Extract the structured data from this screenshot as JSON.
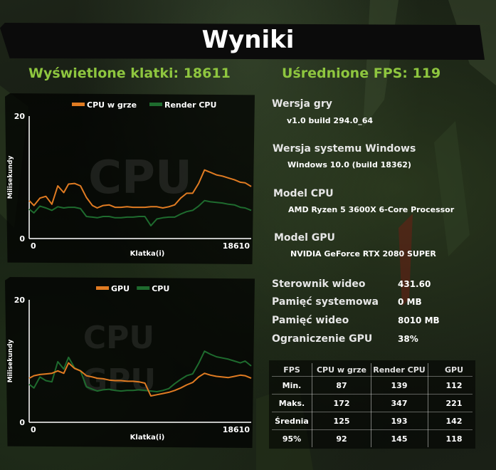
{
  "title": "Wyniki",
  "frames_rendered": "Wyświetlone klatki: 18611",
  "average_fps": "Uśrednione FPS: 119",
  "colors": {
    "accent": "#8ec63f",
    "cpu_game": "#e07b22",
    "render_cpu": "#1e6b2e",
    "gpu": "#e07b22",
    "cpu": "#1e6b2e"
  },
  "chart_data": [
    {
      "type": "line",
      "watermark": "CPU",
      "xlabel": "Klatka(i)",
      "ylabel": "Milisekundy",
      "x_ticks": [
        "0",
        "18610"
      ],
      "y_ticks": [
        "20",
        "0"
      ],
      "xlim": [
        0,
        18610
      ],
      "ylim": [
        0,
        20
      ],
      "legend": "top",
      "series": [
        {
          "name": "CPU w grze",
          "color": "#e07b22",
          "x": [
            0,
            400,
            900,
            1400,
            1900,
            2400,
            2900,
            3300,
            3800,
            4300,
            4800,
            5300,
            5700,
            6200,
            6700,
            7200,
            7700,
            8200,
            8700,
            9200,
            9700,
            10200,
            10700,
            11200,
            11700,
            12200,
            12700,
            13200,
            13700,
            14200,
            14700,
            15200,
            15700,
            16200,
            16700,
            17200,
            17700,
            18100,
            18610
          ],
          "values": [
            6.2,
            5.4,
            6.6,
            6.9,
            5.6,
            8.6,
            7.5,
            8.9,
            9.0,
            8.6,
            6.7,
            5.4,
            5.0,
            5.4,
            5.5,
            5.1,
            5.1,
            5.2,
            5.1,
            5.1,
            5.1,
            5.2,
            5.2,
            5.0,
            5.2,
            5.5,
            6.6,
            7.4,
            7.4,
            9.0,
            11.2,
            10.8,
            10.4,
            10.2,
            9.9,
            9.6,
            9.2,
            9.1,
            8.5
          ]
        },
        {
          "name": "Render CPU",
          "color": "#1e6b2e",
          "x": [
            0,
            400,
            900,
            1400,
            1900,
            2400,
            2900,
            3300,
            3800,
            4300,
            4800,
            5300,
            5700,
            6200,
            6700,
            7200,
            7700,
            8200,
            8700,
            9200,
            9700,
            10200,
            10700,
            11200,
            11700,
            12200,
            12700,
            13200,
            13700,
            14200,
            14700,
            15200,
            15700,
            16200,
            16700,
            17200,
            17700,
            18100,
            18610
          ],
          "values": [
            4.8,
            4.2,
            5.3,
            5.0,
            4.6,
            5.2,
            5.0,
            5.1,
            5.1,
            4.9,
            3.6,
            3.5,
            3.4,
            3.6,
            3.6,
            3.4,
            3.4,
            3.5,
            3.5,
            3.6,
            3.6,
            2.1,
            3.2,
            3.4,
            3.5,
            3.5,
            4.0,
            4.4,
            4.6,
            5.3,
            6.2,
            6.0,
            5.9,
            5.8,
            5.6,
            5.5,
            5.1,
            5.0,
            4.6
          ]
        }
      ]
    },
    {
      "type": "line",
      "watermark": "CPU GPU",
      "xlabel": "Klatka(i)",
      "ylabel": "Milisekundy",
      "x_ticks": [
        "0",
        "18610"
      ],
      "y_ticks": [
        "20",
        "0"
      ],
      "xlim": [
        0,
        18610
      ],
      "ylim": [
        0,
        20
      ],
      "legend": "top",
      "series": [
        {
          "name": "GPU",
          "color": "#e07b22",
          "x": [
            0,
            400,
            900,
            1400,
            1900,
            2400,
            2900,
            3300,
            3800,
            4300,
            4800,
            5300,
            5700,
            6200,
            6700,
            7200,
            7700,
            8200,
            8700,
            9200,
            9700,
            10200,
            10700,
            11200,
            11700,
            12200,
            12700,
            13200,
            13700,
            14200,
            14700,
            15200,
            15700,
            16200,
            16700,
            17200,
            17700,
            18100,
            18610
          ],
          "values": [
            7.2,
            7.6,
            7.8,
            7.9,
            8.0,
            8.4,
            8.0,
            9.7,
            8.8,
            8.4,
            7.6,
            7.4,
            7.2,
            7.1,
            6.9,
            6.8,
            6.8,
            6.7,
            6.7,
            6.6,
            6.4,
            4.3,
            4.5,
            4.7,
            4.9,
            5.2,
            5.6,
            6.1,
            6.5,
            7.4,
            8.0,
            7.7,
            7.5,
            7.4,
            7.3,
            7.5,
            7.7,
            7.6,
            7.2
          ]
        },
        {
          "name": "CPU",
          "color": "#1e6b2e",
          "x": [
            0,
            400,
            900,
            1400,
            1900,
            2400,
            2900,
            3300,
            3800,
            4300,
            4800,
            5300,
            5700,
            6200,
            6700,
            7200,
            7700,
            8200,
            8700,
            9200,
            9700,
            10200,
            10700,
            11200,
            11700,
            12200,
            12700,
            13200,
            13700,
            14200,
            14700,
            15200,
            15700,
            16200,
            16700,
            17200,
            17700,
            18100,
            18610
          ],
          "values": [
            6.2,
            5.6,
            7.4,
            6.8,
            6.6,
            9.9,
            8.7,
            10.6,
            8.9,
            8.4,
            5.8,
            5.4,
            5.1,
            5.3,
            5.4,
            5.2,
            5.1,
            5.2,
            5.2,
            5.3,
            5.2,
            5.1,
            5.0,
            5.2,
            5.5,
            6.3,
            7.0,
            7.6,
            7.9,
            9.6,
            11.6,
            11.1,
            10.7,
            10.5,
            10.3,
            10.0,
            9.7,
            10.0,
            9.2
          ]
        }
      ]
    }
  ],
  "info": {
    "game_version_label": "Wersja gry",
    "game_version": "v1.0 build 294.0_64",
    "windows_version_label": "Wersja systemu Windows",
    "windows_version": "Windows 10.0 (build 18362)",
    "cpu_model_label": "Model CPU",
    "cpu_model": "AMD Ryzen 5 3600X 6-Core Processor",
    "gpu_model_label": "Model GPU",
    "gpu_model": "NVIDIA GeForce RTX 2080 SUPER"
  },
  "system": [
    {
      "label": "Sterownik wideo",
      "value": "431.60"
    },
    {
      "label": "Pamięć systemowa",
      "value": "0 MB"
    },
    {
      "label": "Pamięć wideo",
      "value": "8010 MB"
    },
    {
      "label": "Ograniczenie GPU",
      "value": "38%"
    }
  ],
  "fps_table": {
    "headers": [
      "FPS",
      "CPU w grze",
      "Render CPU",
      "GPU"
    ],
    "rows": [
      [
        "Min.",
        "87",
        "139",
        "112"
      ],
      [
        "Maks.",
        "172",
        "347",
        "221"
      ],
      [
        "Średnia",
        "125",
        "193",
        "142"
      ],
      [
        "95%",
        "92",
        "145",
        "118"
      ]
    ]
  }
}
